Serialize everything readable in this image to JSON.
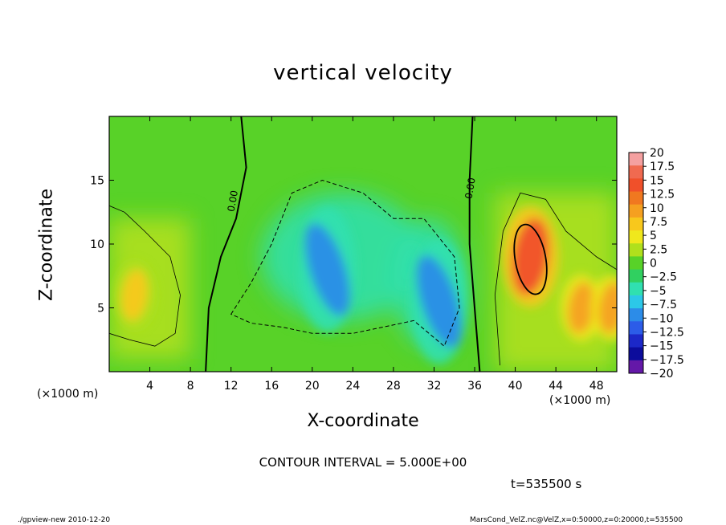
{
  "chart_data": {
    "type": "heatmap",
    "title": "vertical velocity",
    "xlabel": "X-coordinate",
    "ylabel": "Z-coordinate",
    "x_unit_label": "(×1000 m)",
    "xlim": [
      0,
      50
    ],
    "ylim": [
      0,
      20
    ],
    "x_ticks": [
      4,
      8,
      12,
      16,
      20,
      24,
      28,
      32,
      36,
      40,
      44,
      48
    ],
    "y_ticks": [
      5,
      10,
      15
    ],
    "colorbar": {
      "levels": [
        "20",
        "17.5",
        "15",
        "12.5",
        "10",
        "7.5",
        "5",
        "2.5",
        "0",
        "−2.5",
        "−5",
        "−7.5",
        "−10",
        "−12.5",
        "−15",
        "−17.5",
        "−20"
      ],
      "colors": [
        "#f4a0a0",
        "#f06a50",
        "#f0502a",
        "#f07820",
        "#f5a020",
        "#f8c81c",
        "#f0e81c",
        "#b0e01c",
        "#58d228",
        "#30d060",
        "#30e0b0",
        "#2cc8e8",
        "#2c8ce8",
        "#2c5ce8",
        "#1c28c8",
        "#0c0c9c",
        "#6418a8"
      ]
    },
    "contour_labels": [
      "0.00",
      "0.00"
    ],
    "features": [
      {
        "kind": "updraft",
        "x": 2.5,
        "z": 6,
        "w": 7
      },
      {
        "kind": "updraft",
        "x": 41.5,
        "z": 9,
        "w": 14
      },
      {
        "kind": "updraft",
        "x": 46.5,
        "z": 5,
        "w": 10
      },
      {
        "kind": "updraft",
        "x": 49.5,
        "z": 5,
        "w": 11
      },
      {
        "kind": "downdraft",
        "x": 21.5,
        "z": 8,
        "w": -11
      },
      {
        "kind": "downdraft",
        "x": 32.5,
        "z": 5.5,
        "w": -10
      }
    ]
  },
  "annotations": {
    "contour_interval": "CONTOUR INTERVAL = 5.000E+00",
    "time": "t=535500 s",
    "footer_left": "./gpview-new  2010-12-20",
    "footer_right": "MarsCond_VelZ.nc@VelZ,x=0:50000,z=0:20000,t=535500"
  }
}
